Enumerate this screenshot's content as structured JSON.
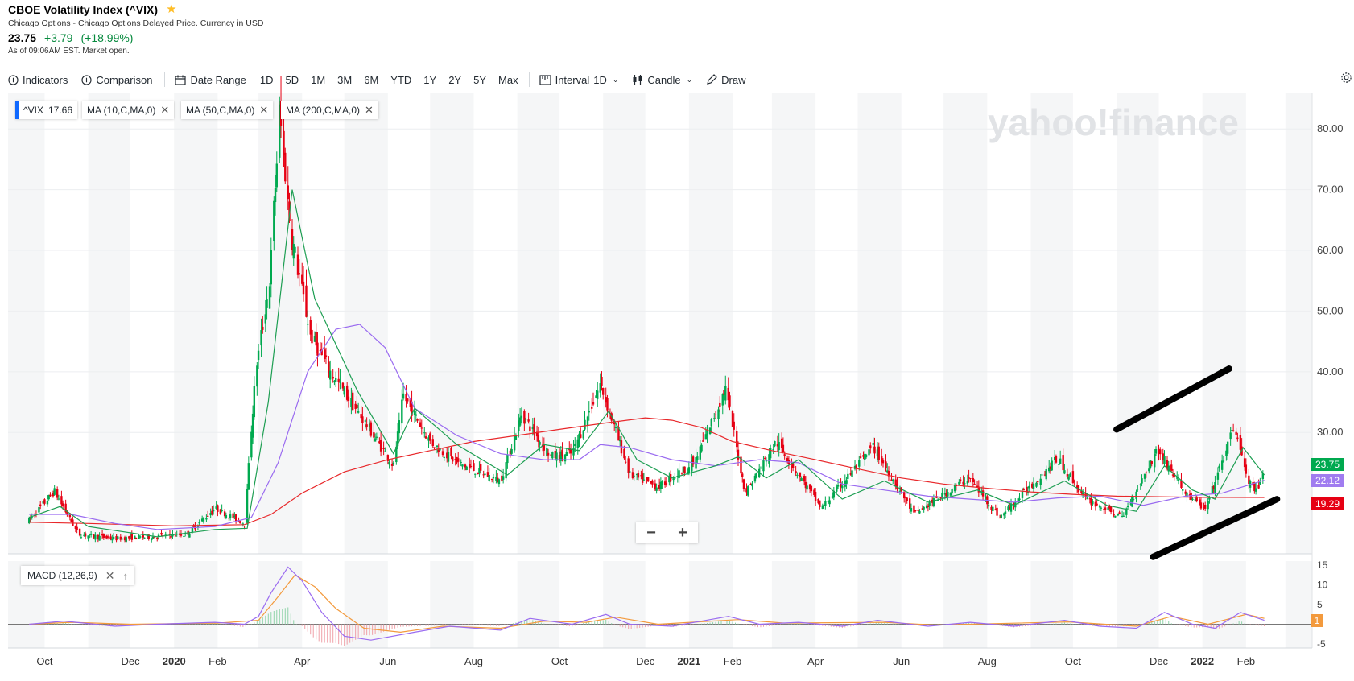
{
  "header": {
    "title": "CBOE Volatility Index (^VIX)",
    "exchange": "Chicago Options - Chicago Options Delayed Price. Currency in USD",
    "price": "23.75",
    "change": "+3.79",
    "change_pct": "(+18.99%)",
    "as_of": "As of 09:06AM EST. Market open."
  },
  "toolbar": {
    "indicators": "Indicators",
    "comparison": "Comparison",
    "date_range": "Date Range",
    "ranges": [
      "1D",
      "5D",
      "1M",
      "3M",
      "6M",
      "YTD",
      "1Y",
      "2Y",
      "5Y",
      "Max"
    ],
    "interval_label": "Interval",
    "interval_value": "1D",
    "chart_type": "Candle",
    "draw": "Draw"
  },
  "legend": {
    "symbol": "^VIX",
    "last": "17.66",
    "ma10": "MA (10,C,MA,0)",
    "ma50": "MA (50,C,MA,0)",
    "ma200": "MA (200,C,MA,0)"
  },
  "watermark": "yahoo!finance",
  "zoom": {
    "minus": "−",
    "plus": "+"
  },
  "price_labels": {
    "last": "23.75",
    "ma50": "22.12",
    "ma200": "19.29",
    "macd": "1"
  },
  "macd_panel": {
    "label": "MACD (12,26,9)"
  },
  "colors": {
    "up": "#00a94f",
    "down": "#e60013",
    "ma10": "#1d9e52",
    "ma50": "#9a6bf0",
    "ma200": "#e8282b",
    "macd_line": "#9a6bf0",
    "signal_line": "#f39a3d",
    "accent": "#0f69ff"
  },
  "chart_data": [
    {
      "type": "candlestick",
      "symbol": "^VIX",
      "ylim": [
        10,
        86
      ],
      "y_ticks": [
        30,
        40,
        50,
        60,
        70,
        80
      ],
      "x_tick_labels": [
        "Oct",
        "Dec",
        "2020",
        "Feb",
        "Apr",
        "Jun",
        "Aug",
        "Oct",
        "Dec",
        "2021",
        "Feb",
        "Apr",
        "Jun",
        "Aug",
        "Oct",
        "Dec",
        "2022",
        "Feb"
      ],
      "x_tick_dates": [
        "2019-10-01",
        "2019-12-01",
        "2020-01-01",
        "2020-02-01",
        "2020-04-01",
        "2020-06-01",
        "2020-08-01",
        "2020-10-01",
        "2020-12-01",
        "2021-01-01",
        "2021-02-01",
        "2021-04-01",
        "2021-06-01",
        "2021-08-01",
        "2021-10-01",
        "2021-12-01",
        "2022-01-01",
        "2022-02-01"
      ],
      "close_series": [
        [
          "2019-09-20",
          15.5
        ],
        [
          "2019-10-08",
          20.3
        ],
        [
          "2019-10-25",
          13.2
        ],
        [
          "2019-11-20",
          12.5
        ],
        [
          "2019-12-15",
          12.8
        ],
        [
          "2020-01-10",
          13.2
        ],
        [
          "2020-01-30",
          17.5
        ],
        [
          "2020-02-20",
          15.0
        ],
        [
          "2020-02-28",
          40.0
        ],
        [
          "2020-03-09",
          55.0
        ],
        [
          "2020-03-16",
          82.7
        ],
        [
          "2020-03-24",
          63.0
        ],
        [
          "2020-04-07",
          46.0
        ],
        [
          "2020-04-21",
          40.0
        ],
        [
          "2020-05-15",
          31.9
        ],
        [
          "2020-06-05",
          24.5
        ],
        [
          "2020-06-12",
          36.1
        ],
        [
          "2020-07-01",
          28.5
        ],
        [
          "2020-07-20",
          25.0
        ],
        [
          "2020-08-20",
          22.0
        ],
        [
          "2020-09-04",
          33.0
        ],
        [
          "2020-09-25",
          26.0
        ],
        [
          "2020-10-10",
          26.5
        ],
        [
          "2020-10-30",
          38.0
        ],
        [
          "2020-11-20",
          23.0
        ],
        [
          "2020-12-10",
          21.0
        ],
        [
          "2021-01-05",
          25.0
        ],
        [
          "2021-01-27",
          37.2
        ],
        [
          "2021-02-10",
          20.0
        ],
        [
          "2021-03-04",
          28.5
        ],
        [
          "2021-04-05",
          17.5
        ],
        [
          "2021-05-12",
          27.6
        ],
        [
          "2021-06-10",
          16.5
        ],
        [
          "2021-07-19",
          22.5
        ],
        [
          "2021-08-10",
          16.0
        ],
        [
          "2021-09-20",
          25.7
        ],
        [
          "2021-10-10",
          19.0
        ],
        [
          "2021-11-05",
          16.0
        ],
        [
          "2021-11-30",
          27.2
        ],
        [
          "2021-12-20",
          20.0
        ],
        [
          "2022-01-03",
          17.2
        ],
        [
          "2022-01-24",
          31.2
        ],
        [
          "2022-02-02",
          22.0
        ],
        [
          "2022-02-09",
          19.96
        ],
        [
          "2022-02-14",
          23.75
        ]
      ],
      "ma10_series": [
        [
          "2019-09-20",
          16.0
        ],
        [
          "2019-10-12",
          17.8
        ],
        [
          "2019-11-01",
          14.5
        ],
        [
          "2019-12-20",
          12.8
        ],
        [
          "2020-01-30",
          14.0
        ],
        [
          "2020-02-22",
          14.2
        ],
        [
          "2020-03-08",
          35.0
        ],
        [
          "2020-03-25",
          70.0
        ],
        [
          "2020-04-10",
          52.0
        ],
        [
          "2020-05-10",
          37.0
        ],
        [
          "2020-06-05",
          26.5
        ],
        [
          "2020-06-20",
          34.0
        ],
        [
          "2020-07-20",
          28.0
        ],
        [
          "2020-08-25",
          23.0
        ],
        [
          "2020-09-20",
          28.0
        ],
        [
          "2020-10-15",
          27.0
        ],
        [
          "2020-11-05",
          33.5
        ],
        [
          "2020-11-25",
          25.5
        ],
        [
          "2020-12-20",
          22.5
        ],
        [
          "2021-01-20",
          24.5
        ],
        [
          "2021-02-05",
          26.0
        ],
        [
          "2021-02-25",
          22.5
        ],
        [
          "2021-03-20",
          25.5
        ],
        [
          "2021-04-20",
          19.0
        ],
        [
          "2021-05-20",
          22.0
        ],
        [
          "2021-06-20",
          18.5
        ],
        [
          "2021-07-25",
          20.5
        ],
        [
          "2021-08-20",
          18.0
        ],
        [
          "2021-09-25",
          22.0
        ],
        [
          "2021-10-25",
          18.0
        ],
        [
          "2021-11-15",
          17.0
        ],
        [
          "2021-12-05",
          24.5
        ],
        [
          "2021-12-25",
          20.5
        ],
        [
          "2022-01-10",
          19.0
        ],
        [
          "2022-01-30",
          27.5
        ],
        [
          "2022-02-14",
          23.0
        ]
      ],
      "ma50_series": [
        [
          "2019-09-20",
          16.5
        ],
        [
          "2019-10-20",
          16.5
        ],
        [
          "2019-11-20",
          15.0
        ],
        [
          "2019-12-20",
          14.0
        ],
        [
          "2020-01-30",
          14.5
        ],
        [
          "2020-02-25",
          16.0
        ],
        [
          "2020-03-15",
          25.0
        ],
        [
          "2020-04-05",
          40.0
        ],
        [
          "2020-04-25",
          47.0
        ],
        [
          "2020-05-12",
          47.8
        ],
        [
          "2020-05-30",
          44.0
        ],
        [
          "2020-06-20",
          34.0
        ],
        [
          "2020-07-20",
          29.5
        ],
        [
          "2020-08-20",
          26.5
        ],
        [
          "2020-09-20",
          25.5
        ],
        [
          "2020-10-15",
          25.5
        ],
        [
          "2020-10-30",
          28.0
        ],
        [
          "2020-11-20",
          27.5
        ],
        [
          "2020-12-20",
          25.5
        ],
        [
          "2021-01-20",
          24.5
        ],
        [
          "2021-02-20",
          25.5
        ],
        [
          "2021-03-20",
          25.0
        ],
        [
          "2021-04-20",
          21.5
        ],
        [
          "2021-05-20",
          20.5
        ],
        [
          "2021-06-20",
          19.5
        ],
        [
          "2021-07-20",
          19.0
        ],
        [
          "2021-08-20",
          18.5
        ],
        [
          "2021-09-20",
          19.2
        ],
        [
          "2021-10-20",
          19.5
        ],
        [
          "2021-11-20",
          18.0
        ],
        [
          "2021-12-20",
          19.5
        ],
        [
          "2022-01-15",
          20.0
        ],
        [
          "2022-02-14",
          22.12
        ]
      ],
      "ma200_series": [
        [
          "2019-09-20",
          15.2
        ],
        [
          "2019-11-01",
          15.0
        ],
        [
          "2020-01-01",
          14.6
        ],
        [
          "2020-02-20",
          14.8
        ],
        [
          "2020-03-10",
          16.5
        ],
        [
          "2020-04-01",
          20.0
        ],
        [
          "2020-05-01",
          23.5
        ],
        [
          "2020-06-01",
          25.5
        ],
        [
          "2020-07-01",
          27.0
        ],
        [
          "2020-08-01",
          28.5
        ],
        [
          "2020-09-01",
          29.5
        ],
        [
          "2020-10-01",
          30.5
        ],
        [
          "2020-11-01",
          31.5
        ],
        [
          "2020-12-01",
          32.4
        ],
        [
          "2020-12-20",
          32.0
        ],
        [
          "2021-01-10",
          30.8
        ],
        [
          "2021-02-01",
          28.5
        ],
        [
          "2021-03-01",
          27.0
        ],
        [
          "2021-04-01",
          25.5
        ],
        [
          "2021-05-01",
          24.0
        ],
        [
          "2021-06-01",
          22.5
        ],
        [
          "2021-07-01",
          21.5
        ],
        [
          "2021-08-01",
          20.8
        ],
        [
          "2021-09-01",
          20.2
        ],
        [
          "2021-10-01",
          19.8
        ],
        [
          "2021-11-01",
          19.5
        ],
        [
          "2021-12-01",
          19.4
        ],
        [
          "2022-01-01",
          19.3
        ],
        [
          "2022-02-14",
          19.29
        ]
      ],
      "annotations": [
        {
          "type": "drawn-line",
          "from": [
            "2021-11-01",
            30.5
          ],
          "to": [
            "2022-01-20",
            40.5
          ]
        },
        {
          "type": "drawn-line",
          "from": [
            "2021-11-27",
            9.5
          ],
          "to": [
            "2022-02-23",
            19.0
          ]
        }
      ]
    },
    {
      "type": "line",
      "name": "MACD (12,26,9)",
      "ylim": [
        -6,
        16
      ],
      "y_ticks": [
        -5,
        5,
        10,
        15
      ],
      "macd_series": [
        [
          "2019-09-20",
          0
        ],
        [
          "2019-10-15",
          0.8
        ],
        [
          "2019-11-20",
          -0.5
        ],
        [
          "2019-12-20",
          0
        ],
        [
          "2020-01-30",
          0.5
        ],
        [
          "2020-02-20",
          0
        ],
        [
          "2020-03-01",
          2
        ],
        [
          "2020-03-10",
          8
        ],
        [
          "2020-03-22",
          14.5
        ],
        [
          "2020-04-01",
          11
        ],
        [
          "2020-04-15",
          3
        ],
        [
          "2020-05-01",
          -3
        ],
        [
          "2020-05-20",
          -4
        ],
        [
          "2020-06-20",
          -2
        ],
        [
          "2020-07-15",
          -0.5
        ],
        [
          "2020-08-20",
          -1.5
        ],
        [
          "2020-09-10",
          1.5
        ],
        [
          "2020-10-10",
          0
        ],
        [
          "2020-11-03",
          2.5
        ],
        [
          "2020-11-20",
          0
        ],
        [
          "2020-12-20",
          -0.5
        ],
        [
          "2021-01-29",
          2
        ],
        [
          "2021-02-20",
          0
        ],
        [
          "2021-03-20",
          0.5
        ],
        [
          "2021-04-20",
          -0.5
        ],
        [
          "2021-05-15",
          1
        ],
        [
          "2021-06-20",
          -0.5
        ],
        [
          "2021-07-20",
          0.5
        ],
        [
          "2021-08-20",
          -0.5
        ],
        [
          "2021-09-25",
          1
        ],
        [
          "2021-10-20",
          -0.5
        ],
        [
          "2021-11-15",
          -1
        ],
        [
          "2021-12-05",
          3
        ],
        [
          "2021-12-25",
          0
        ],
        [
          "2022-01-10",
          -1
        ],
        [
          "2022-01-28",
          3
        ],
        [
          "2022-02-14",
          1
        ]
      ],
      "signal_series": [
        [
          "2019-09-20",
          0
        ],
        [
          "2019-10-20",
          0.5
        ],
        [
          "2019-12-01",
          0
        ],
        [
          "2020-02-01",
          0.3
        ],
        [
          "2020-03-01",
          1
        ],
        [
          "2020-03-15",
          7
        ],
        [
          "2020-03-27",
          12.5
        ],
        [
          "2020-04-10",
          9.5
        ],
        [
          "2020-04-25",
          4
        ],
        [
          "2020-05-15",
          -1
        ],
        [
          "2020-06-10",
          -2
        ],
        [
          "2020-07-10",
          -0.5
        ],
        [
          "2020-08-20",
          -1
        ],
        [
          "2020-09-20",
          0.8
        ],
        [
          "2020-10-20",
          0.5
        ],
        [
          "2020-11-10",
          1.8
        ],
        [
          "2020-12-10",
          0
        ],
        [
          "2021-02-05",
          1.2
        ],
        [
          "2021-03-10",
          0.3
        ],
        [
          "2021-05-20",
          0.5
        ],
        [
          "2021-06-25",
          -0.2
        ],
        [
          "2021-09-28",
          0.6
        ],
        [
          "2021-11-15",
          -0.5
        ],
        [
          "2021-12-10",
          2
        ],
        [
          "2022-01-05",
          0
        ],
        [
          "2022-02-01",
          2.5
        ],
        [
          "2022-02-14",
          1.5
        ]
      ]
    }
  ]
}
